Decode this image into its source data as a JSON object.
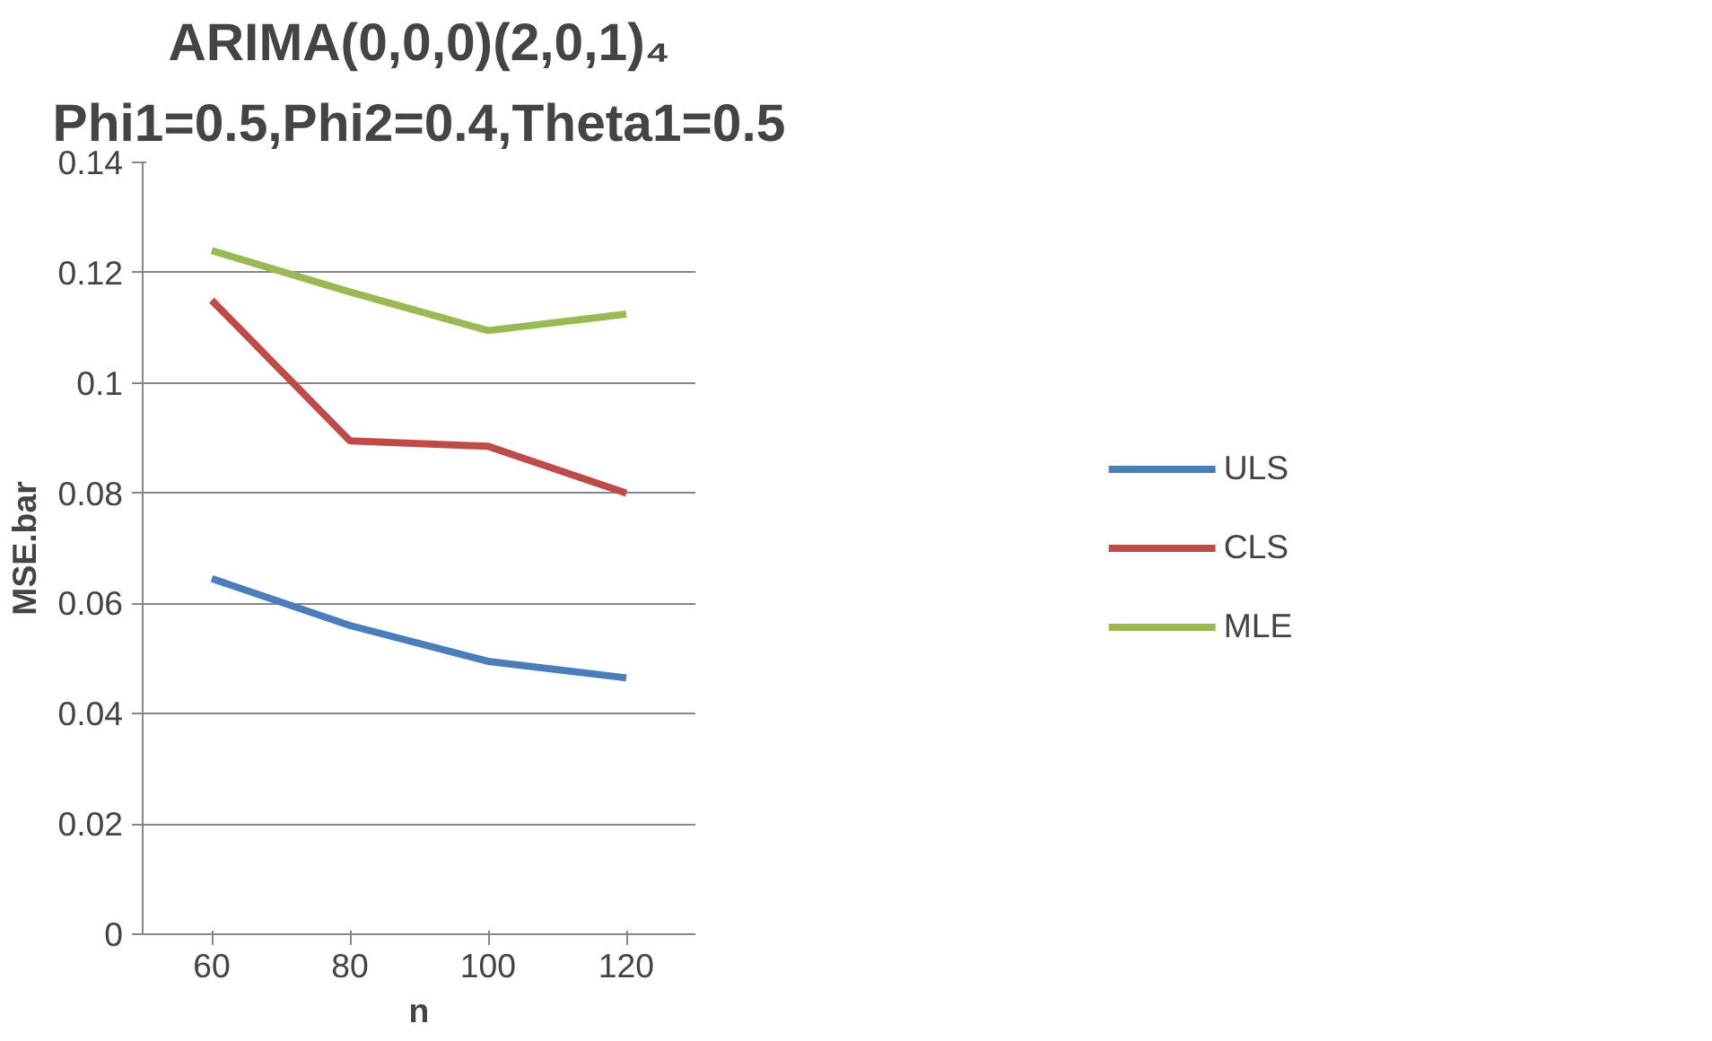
{
  "chart_data": {
    "type": "line",
    "title": "ARIMA(0,0,0)(2,0,1)₄",
    "subtitle": "Phi1=0.5,Phi2=0.4,Theta1=0.5",
    "xlabel": "n",
    "ylabel": "MSE.bar",
    "categories": [
      "60",
      "80",
      "100",
      "120"
    ],
    "series": [
      {
        "name": "ULS",
        "color": "#4a7ebb",
        "values": [
          0.0645,
          0.056,
          0.0495,
          0.0465
        ]
      },
      {
        "name": "CLS",
        "color": "#be4b48",
        "values": [
          0.115,
          0.0895,
          0.0885,
          0.08
        ]
      },
      {
        "name": "MLE",
        "color": "#98b954",
        "values": [
          0.124,
          0.1165,
          0.1095,
          0.1125
        ]
      }
    ],
    "ylim": [
      0,
      0.14
    ],
    "yticks": [
      0,
      0.02,
      0.04,
      0.06,
      0.08,
      0.1,
      0.12,
      0.14
    ],
    "grid": "y",
    "legend": "right",
    "marker": "none",
    "line_style": "solid"
  }
}
